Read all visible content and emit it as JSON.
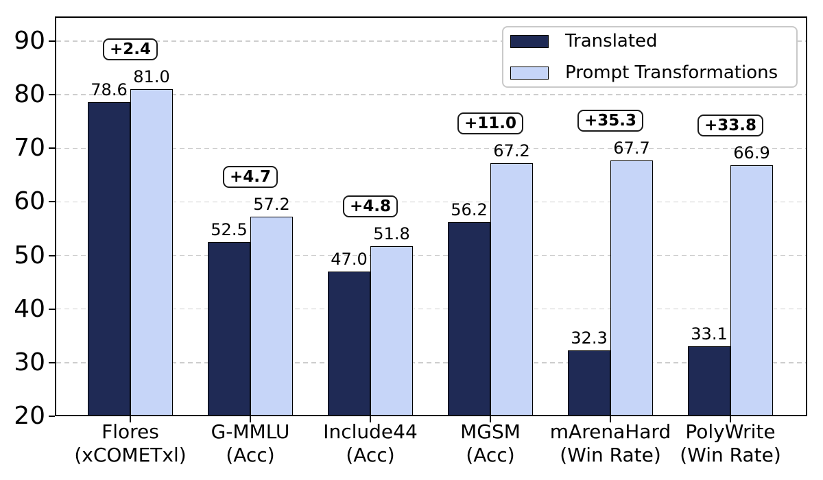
{
  "chart_data": {
    "type": "bar",
    "categories": [
      {
        "label": "Flores",
        "sublabel": "(xCOMETxl)"
      },
      {
        "label": "G-MMLU",
        "sublabel": "(Acc)"
      },
      {
        "label": "Include44",
        "sublabel": "(Acc)"
      },
      {
        "label": "MGSM",
        "sublabel": "(Acc)"
      },
      {
        "label": "mArenaHard",
        "sublabel": "(Win Rate)"
      },
      {
        "label": "PolyWrite",
        "sublabel": "(Win Rate)"
      }
    ],
    "series": [
      {
        "name": "Translated",
        "color": "#1f2a55",
        "values": [
          78.6,
          52.5,
          47.0,
          56.2,
          32.3,
          33.1
        ]
      },
      {
        "name": "Prompt Transformations",
        "color": "#c6d5f8",
        "values": [
          81.0,
          57.2,
          51.8,
          67.2,
          67.7,
          66.9
        ]
      }
    ],
    "delta_labels": [
      "+2.4",
      "+4.7",
      "+4.8",
      "+11.0",
      "+35.3",
      "+33.8"
    ],
    "value_label_decimals": 1,
    "yticks": [
      20,
      30,
      40,
      50,
      60,
      70,
      80,
      90
    ],
    "ylim": [
      20,
      94.8
    ],
    "xlabel": "",
    "ylabel": "",
    "title": "",
    "grid": "horizontal-dashed",
    "legend_position": "upper right",
    "bar_edge_color": "#000000"
  }
}
